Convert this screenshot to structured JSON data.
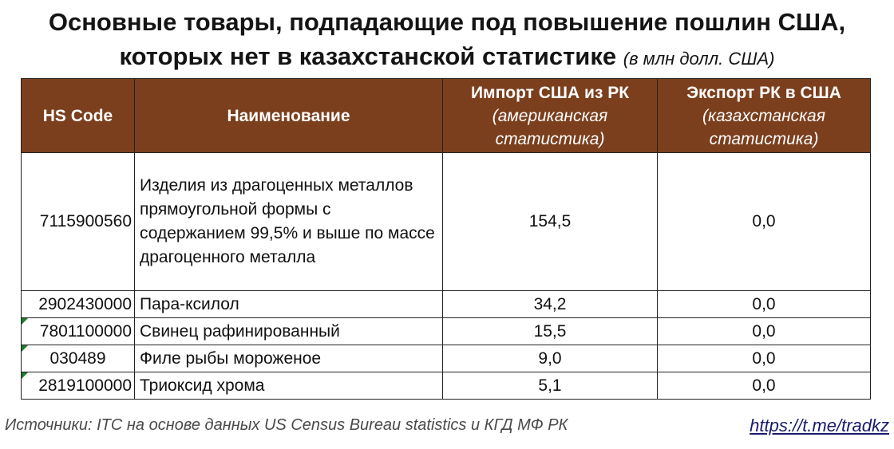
{
  "title": {
    "line1": "Основные товары, подпадающие под повышение пошлин США,",
    "line2": "которых нет в казахстанской статистике",
    "unit": "(в млн долл. США)"
  },
  "table": {
    "headers": {
      "code": "HS Code",
      "name": "Наименование",
      "import_main": "Импорт США из РК",
      "import_sub": "(американская статистика)",
      "export_main": "Экспорт РК в США",
      "export_sub": "(казахстанская статистика)"
    },
    "rows": [
      {
        "code": "7115900560",
        "name": "Изделия из драгоценных металлов прямоугольной формы с содержанием 99,5% и выше по массе драгоценного металла",
        "import": "154,5",
        "export": "0,0"
      },
      {
        "code": "2902430000",
        "name": "Пара-ксилол",
        "import": "34,2",
        "export": "0,0"
      },
      {
        "code": "7801100000",
        "name": "Свинец рафинированный",
        "import": "15,5",
        "export": "0,0"
      },
      {
        "code": "030489",
        "name": "Филе рыбы мороженое",
        "import": "9,0",
        "export": "0,0"
      },
      {
        "code": "2819100000",
        "name": "Триоксид хрома",
        "import": "5,1",
        "export": "0,0"
      }
    ]
  },
  "footer": {
    "sources": "Источники: ITC на основе данных US Census Bureau statistics и КГД МФ РК",
    "link": "https://t.me/tradkz"
  },
  "colors": {
    "header_bg": "#7b3f1d",
    "flag": "#1f7a2e"
  }
}
